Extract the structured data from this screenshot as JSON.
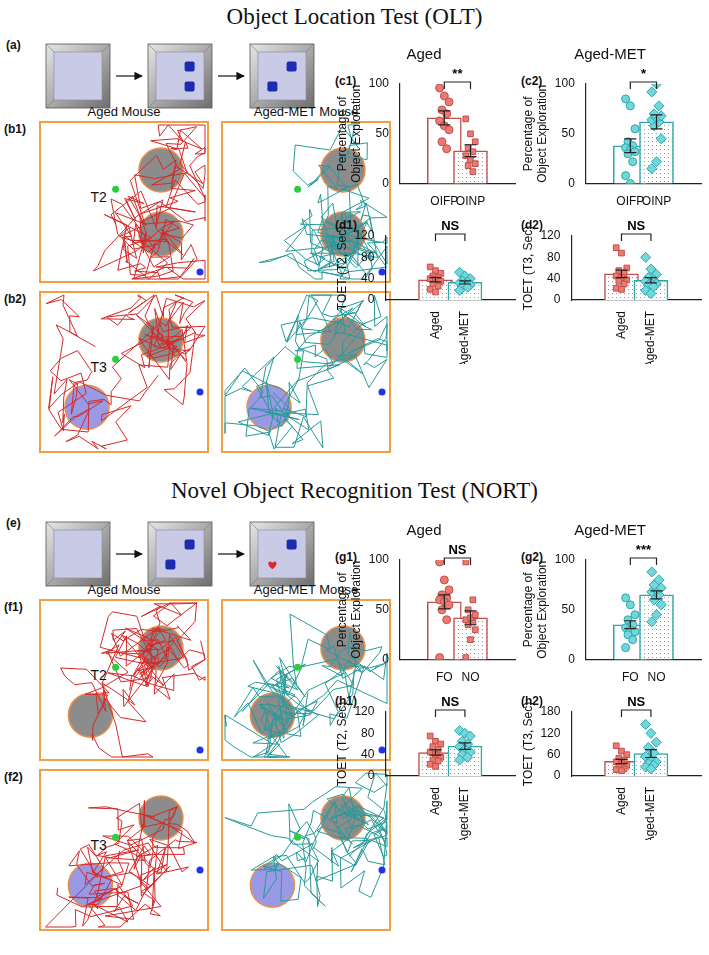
{
  "sections": [
    {
      "title": "Object Location Test (OLT)",
      "schematic_label": "(a)",
      "track_columns": [
        "Aged Mouse",
        "Aged-MET Mouse"
      ],
      "track_rows": [
        {
          "label": "(b1)",
          "trial": "T2"
        },
        {
          "label": "(b2)",
          "trial": "T3"
        }
      ]
    },
    {
      "title": "Novel Object Recognition Test (NORT)",
      "schematic_label": "(e)",
      "track_columns": [
        "Aged Mouse",
        "Aged-MET Mouse"
      ],
      "track_rows": [
        {
          "label": "(f1)",
          "trial": "T2"
        },
        {
          "label": "(f2)",
          "trial": "T3"
        }
      ]
    }
  ],
  "chart_data": [
    {
      "type": "bar",
      "panel": "(c1)",
      "title": "Aged",
      "y_label": [
        "Percentage of",
        "Object Exploration"
      ],
      "categories": [
        "OIFP",
        "OINP"
      ],
      "values": [
        66,
        33
      ],
      "error": [
        7,
        6
      ],
      "colors": [
        "#c0504d",
        "#c0504d"
      ],
      "points": [
        {
          "color": "#ec7a72",
          "marker": "circle",
          "values": [
            96,
            88,
            82,
            74,
            70,
            63,
            58,
            54,
            42,
            35
          ]
        },
        {
          "color": "#ec7a72",
          "marker": "square",
          "values": [
            65,
            50,
            42,
            36,
            32,
            28,
            24,
            20,
            18,
            12
          ]
        }
      ],
      "ylim": [
        0,
        100
      ],
      "yticks": [
        0,
        50,
        100
      ],
      "annotation": "**"
    },
    {
      "type": "bar",
      "panel": "(c2)",
      "title": "Aged-MET",
      "y_label": [
        "Percentage of",
        "Object Exploration"
      ],
      "categories": [
        "OIFP",
        "OINP"
      ],
      "values": [
        38,
        62
      ],
      "error": [
        7,
        7
      ],
      "colors": [
        "#2aa7ad",
        "#2aa7ad"
      ],
      "points": [
        {
          "color": "#72d6da",
          "marker": "circle",
          "values": [
            85,
            78,
            55,
            42,
            38,
            36,
            34,
            32,
            30,
            22,
            8,
            0
          ]
        },
        {
          "color": "#72d6da",
          "marker": "diamond",
          "values": [
            15,
            22,
            45,
            58,
            62,
            64,
            66,
            68,
            70,
            78,
            92,
            100
          ]
        }
      ],
      "ylim": [
        0,
        100
      ],
      "yticks": [
        0,
        50,
        100
      ],
      "annotation": "*"
    },
    {
      "type": "bar",
      "panel": "(d1)",
      "y_label": [
        "TOET (T2, Sec)"
      ],
      "categories": [
        "Aged",
        "Aged-MET"
      ],
      "values": [
        38,
        33
      ],
      "error": [
        4,
        3
      ],
      "colors": [
        "#c0504d",
        "#2aa7ad"
      ],
      "points": [
        {
          "color": "#ec7a72",
          "marker": "square",
          "values": [
            62,
            55,
            50,
            45,
            42,
            40,
            38,
            35,
            30,
            26,
            20,
            15
          ]
        },
        {
          "color": "#72d6da",
          "marker": "diamond",
          "values": [
            52,
            45,
            40,
            36,
            34,
            32,
            30,
            28,
            26,
            24,
            18
          ]
        }
      ],
      "ylim": [
        0,
        120
      ],
      "yticks": [
        0,
        40,
        80,
        120
      ],
      "annotation": "NS"
    },
    {
      "type": "bar",
      "panel": "(d2)",
      "y_label": [
        "TOET (T3, Sec)"
      ],
      "categories": [
        "Aged",
        "Aged-MET"
      ],
      "values": [
        49,
        37
      ],
      "error": [
        7,
        5
      ],
      "colors": [
        "#c0504d",
        "#2aa7ad"
      ],
      "points": [
        {
          "color": "#ec7a72",
          "marker": "square",
          "values": [
            98,
            88,
            60,
            55,
            50,
            45,
            42,
            38,
            35,
            30,
            22,
            20
          ]
        },
        {
          "color": "#72d6da",
          "marker": "diamond",
          "values": [
            80,
            58,
            48,
            42,
            38,
            35,
            32,
            30,
            28,
            25,
            18,
            12
          ]
        }
      ],
      "ylim": [
        0,
        120
      ],
      "yticks": [
        0,
        40,
        80,
        120
      ],
      "annotation": "NS"
    },
    {
      "type": "bar",
      "panel": "(g1)",
      "title": "Aged",
      "y_label": [
        "Percentage of",
        "Object Exploration"
      ],
      "categories": [
        "FO",
        "NO"
      ],
      "values": [
        58,
        42
      ],
      "error": [
        7,
        7
      ],
      "colors": [
        "#c0504d",
        "#c0504d"
      ],
      "points": [
        {
          "color": "#ec7a72",
          "marker": "circle",
          "values": [
            98,
            80,
            70,
            65,
            62,
            60,
            58,
            55,
            50,
            40,
            2
          ]
        },
        {
          "color": "#ec7a72",
          "marker": "square",
          "values": [
            2,
            20,
            30,
            35,
            38,
            40,
            42,
            45,
            50,
            60,
            98
          ]
        }
      ],
      "ylim": [
        0,
        100
      ],
      "yticks": [
        0,
        50,
        100
      ],
      "annotation": "NS"
    },
    {
      "type": "bar",
      "panel": "(g2)",
      "title": "Aged-MET",
      "y_label": [
        "Percentage of",
        "Object Exploration"
      ],
      "categories": [
        "FO",
        "NO"
      ],
      "values": [
        35,
        65
      ],
      "error": [
        4,
        4
      ],
      "colors": [
        "#2aa7ad",
        "#2aa7ad"
      ],
      "points": [
        {
          "color": "#72d6da",
          "marker": "circle",
          "values": [
            62,
            55,
            45,
            40,
            35,
            32,
            30,
            28,
            25,
            20,
            12
          ]
        },
        {
          "color": "#72d6da",
          "marker": "diamond",
          "values": [
            38,
            45,
            55,
            60,
            65,
            68,
            70,
            72,
            75,
            80,
            88
          ]
        }
      ],
      "ylim": [
        0,
        100
      ],
      "yticks": [
        0,
        50,
        100
      ],
      "annotation": "***"
    },
    {
      "type": "bar",
      "panel": "(h1)",
      "y_label": [
        "TOET (T2, Sec)"
      ],
      "categories": [
        "Aged",
        "Aged-MET"
      ],
      "values": [
        44,
        56
      ],
      "error": [
        5,
        6
      ],
      "colors": [
        "#c0504d",
        "#2aa7ad"
      ],
      "points": [
        {
          "color": "#ec7a72",
          "marker": "square",
          "values": [
            75,
            65,
            60,
            55,
            50,
            45,
            40,
            35,
            30,
            28,
            22,
            18
          ]
        },
        {
          "color": "#72d6da",
          "marker": "diamond",
          "values": [
            85,
            80,
            75,
            65,
            60,
            55,
            50,
            45,
            40,
            35,
            30
          ]
        }
      ],
      "ylim": [
        0,
        120
      ],
      "yticks": [
        0,
        40,
        80,
        120
      ],
      "annotation": "NS"
    },
    {
      "type": "bar",
      "panel": "(h2)",
      "y_label": [
        "TOET (T3, Sec)"
      ],
      "categories": [
        "Aged",
        "Aged-MET"
      ],
      "values": [
        41,
        63
      ],
      "error": [
        6,
        11
      ],
      "colors": [
        "#c0504d",
        "#2aa7ad"
      ],
      "points": [
        {
          "color": "#ec7a72",
          "marker": "square",
          "values": [
            85,
            70,
            60,
            50,
            45,
            40,
            35,
            30,
            25,
            20,
            18,
            15
          ]
        },
        {
          "color": "#72d6da",
          "marker": "diamond",
          "values": [
            145,
            120,
            95,
            80,
            65,
            55,
            45,
            40,
            35,
            30,
            25,
            20
          ]
        }
      ],
      "ylim": [
        0,
        180
      ],
      "yticks": [
        0,
        60,
        120,
        180
      ],
      "annotation": "NS"
    }
  ]
}
